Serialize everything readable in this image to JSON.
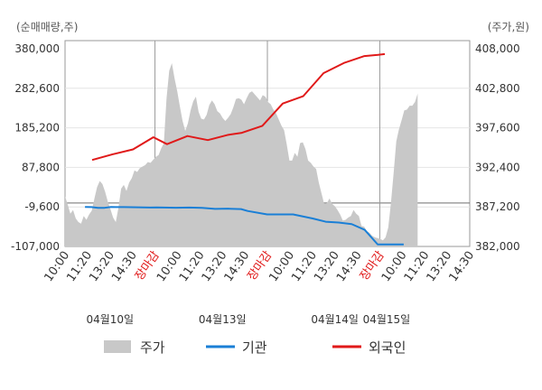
{
  "chart_data": {
    "type": "line",
    "left_unit_label": "(순매매량,주)",
    "right_unit_label": "(주가,원)",
    "left_axis": {
      "ticks": [
        380000,
        282600,
        185200,
        87800,
        -9600,
        -107000
      ],
      "tick_labels": [
        "380,000",
        "282,600",
        "185,200",
        "87,800",
        "-9,600",
        "-107,000"
      ],
      "range": [
        -107000,
        380000
      ]
    },
    "right_axis": {
      "ticks": [
        408000,
        402800,
        397600,
        392400,
        387200,
        382000
      ],
      "tick_labels": [
        "408,000",
        "402,800",
        "397,600",
        "392,400",
        "387,200",
        "382,000"
      ],
      "range": [
        382000,
        408000
      ]
    },
    "x_tick_labels": [
      "10:00",
      "11:20",
      "13:20",
      "14:30",
      "장마감",
      "10:00",
      "11:20",
      "13:20",
      "14:30",
      "장마감",
      "10:00",
      "11:20",
      "13:20",
      "14:30",
      "장마감",
      "10:00",
      "11:20",
      "13:20",
      "14:30"
    ],
    "x_tick_special": [
      false,
      false,
      false,
      false,
      true,
      false,
      false,
      false,
      false,
      true,
      false,
      false,
      false,
      false,
      true,
      false,
      false,
      false,
      false
    ],
    "date_labels": [
      "04월10일",
      "04월13일",
      "04월14일",
      "04월15일"
    ],
    "legend": [
      {
        "name": "주가",
        "color": "#c8c8c8",
        "kind": "area"
      },
      {
        "name": "기관",
        "color": "#1a7fd6",
        "kind": "line"
      },
      {
        "name": "외국인",
        "color": "#e01919",
        "kind": "line"
      }
    ],
    "price_series": [
      388600,
      387500,
      386300,
      386800,
      385700,
      385200,
      385000,
      386000,
      385500,
      386200,
      386700,
      388300,
      389800,
      390600,
      390200,
      389200,
      387900,
      386900,
      385800,
      385200,
      387100,
      389600,
      390100,
      389300,
      390400,
      391000,
      392000,
      391800,
      392300,
      392500,
      392700,
      393100,
      393000,
      393400,
      393800,
      394000,
      394900,
      395600,
      401500,
      405100,
      406100,
      404100,
      402400,
      400400,
      398500,
      397200,
      398200,
      399900,
      401100,
      401700,
      399700,
      398800,
      398700,
      399300,
      400600,
      401200,
      400700,
      399800,
      399500,
      398900,
      398500,
      398900,
      399400,
      400300,
      401400,
      401500,
      401300,
      400700,
      401500,
      402200,
      402400,
      402000,
      401600,
      401200,
      401900,
      401700,
      401000,
      400700,
      400000,
      399500,
      398700,
      397900,
      397300,
      395400,
      393300,
      393300,
      394300,
      393800,
      395600,
      395700,
      394800,
      393300,
      393000,
      392500,
      392200,
      390400,
      389000,
      387600,
      387700,
      388300,
      387600,
      387300,
      386800,
      386200,
      385400,
      385500,
      385800,
      386000,
      386800,
      386300,
      386000,
      384700,
      384600,
      384000,
      383800,
      383400,
      383200,
      383100,
      383000,
      382800,
      383200,
      384500,
      387700,
      391600,
      395800,
      397400,
      398600,
      399900,
      400000,
      400500,
      400500,
      401000,
      402100
    ],
    "institution_series": [
      [
        0,
        -9600
      ],
      [
        3,
        -10000
      ],
      [
        6,
        -12000
      ],
      [
        9,
        -11800
      ],
      [
        12,
        -9800
      ],
      [
        18,
        -10000
      ],
      [
        24,
        -10600
      ],
      [
        30,
        -11000
      ],
      [
        33,
        -10800
      ],
      [
        42,
        -11600
      ],
      [
        48,
        -11200
      ],
      [
        54,
        -12000
      ],
      [
        60,
        -14400
      ],
      [
        66,
        -14000
      ],
      [
        72,
        -15000
      ],
      [
        75,
        -19600
      ],
      [
        84,
        -28000
      ],
      [
        90,
        -28000
      ],
      [
        96,
        -28000
      ],
      [
        105,
        -38000
      ],
      [
        111,
        -46000
      ],
      [
        117,
        -48000
      ],
      [
        123,
        -52000
      ],
      [
        129,
        -66000
      ],
      [
        135,
        -102000
      ],
      [
        147,
        -102000
      ]
    ],
    "foreigner_series": [
      [
        0,
        106000
      ],
      [
        9,
        120000
      ],
      [
        18,
        132000
      ],
      [
        27,
        162000
      ],
      [
        33,
        145000
      ],
      [
        42,
        165000
      ],
      [
        51,
        155000
      ],
      [
        60,
        168000
      ],
      [
        66,
        173000
      ],
      [
        75,
        190000
      ],
      [
        84,
        245000
      ],
      [
        93,
        263000
      ],
      [
        102,
        320000
      ],
      [
        111,
        345000
      ],
      [
        120,
        362000
      ],
      [
        126,
        365000
      ],
      [
        129,
        367000
      ]
    ]
  }
}
